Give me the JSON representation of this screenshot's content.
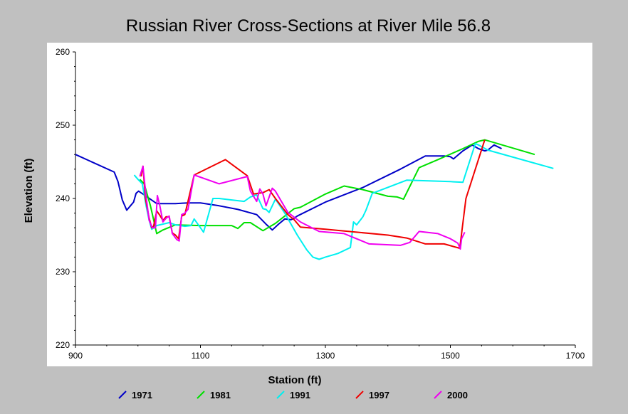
{
  "chart_data": {
    "type": "line",
    "title": "Russian River Cross-Sections at River Mile 56.8",
    "xlabel": "Station (ft)",
    "ylabel": "Elevation (ft)",
    "xlim": [
      900,
      1700
    ],
    "ylim": [
      220,
      260
    ],
    "x_ticks": [
      900,
      1100,
      1300,
      1500,
      1700
    ],
    "y_ticks": [
      220,
      230,
      240,
      250,
      260
    ],
    "grid": false,
    "legend_position": "bottom",
    "series": [
      {
        "name": "1971",
        "color": "#0000c8",
        "points": [
          [
            900,
            246.0
          ],
          [
            962,
            243.6
          ],
          [
            968,
            242.3
          ],
          [
            975,
            239.8
          ],
          [
            982,
            238.4
          ],
          [
            988,
            239.0
          ],
          [
            993,
            239.5
          ],
          [
            997,
            240.7
          ],
          [
            1001,
            241.0
          ],
          [
            1010,
            240.5
          ],
          [
            1030,
            239.3
          ],
          [
            1060,
            239.3
          ],
          [
            1080,
            239.4
          ],
          [
            1100,
            239.4
          ],
          [
            1130,
            239.0
          ],
          [
            1160,
            238.5
          ],
          [
            1190,
            237.8
          ],
          [
            1205,
            236.5
          ],
          [
            1215,
            235.7
          ],
          [
            1225,
            236.5
          ],
          [
            1235,
            237.2
          ],
          [
            1245,
            237.1
          ],
          [
            1250,
            237.3
          ],
          [
            1255,
            237.6
          ],
          [
            1300,
            239.5
          ],
          [
            1360,
            241.5
          ],
          [
            1420,
            244.0
          ],
          [
            1460,
            245.8
          ],
          [
            1490,
            245.8
          ],
          [
            1500,
            245.7
          ],
          [
            1505,
            245.4
          ],
          [
            1520,
            246.5
          ],
          [
            1535,
            247.3
          ],
          [
            1545,
            246.8
          ],
          [
            1555,
            246.5
          ],
          [
            1560,
            246.6
          ],
          [
            1570,
            247.3
          ],
          [
            1582,
            246.8
          ]
        ]
      },
      {
        "name": "1981",
        "color": "#00e000",
        "points": [
          [
            1003,
            242.6
          ],
          [
            1010,
            242.0
          ],
          [
            1020,
            239.0
          ],
          [
            1030,
            235.2
          ],
          [
            1040,
            235.7
          ],
          [
            1060,
            236.4
          ],
          [
            1100,
            236.3
          ],
          [
            1150,
            236.3
          ],
          [
            1160,
            235.9
          ],
          [
            1170,
            236.7
          ],
          [
            1180,
            236.7
          ],
          [
            1200,
            235.6
          ],
          [
            1220,
            236.6
          ],
          [
            1235,
            237.6
          ],
          [
            1250,
            238.6
          ],
          [
            1260,
            238.8
          ],
          [
            1300,
            240.6
          ],
          [
            1330,
            241.7
          ],
          [
            1360,
            241.2
          ],
          [
            1400,
            240.3
          ],
          [
            1415,
            240.2
          ],
          [
            1425,
            239.9
          ],
          [
            1450,
            244.2
          ],
          [
            1480,
            245.3
          ],
          [
            1520,
            246.8
          ],
          [
            1545,
            247.8
          ],
          [
            1555,
            248.0
          ],
          [
            1635,
            246.0
          ]
        ]
      },
      {
        "name": "1991",
        "color": "#00f0f0",
        "points": [
          [
            994,
            243.2
          ],
          [
            1000,
            242.6
          ],
          [
            1007,
            242.0
          ],
          [
            1013,
            239.0
          ],
          [
            1018,
            237.0
          ],
          [
            1022,
            235.8
          ],
          [
            1030,
            236.3
          ],
          [
            1050,
            236.7
          ],
          [
            1060,
            236.4
          ],
          [
            1075,
            236.2
          ],
          [
            1085,
            236.3
          ],
          [
            1090,
            237.2
          ],
          [
            1100,
            236.0
          ],
          [
            1105,
            235.4
          ],
          [
            1120,
            240.0
          ],
          [
            1130,
            240.0
          ],
          [
            1150,
            239.8
          ],
          [
            1170,
            239.6
          ],
          [
            1180,
            240.2
          ],
          [
            1190,
            240.5
          ],
          [
            1200,
            238.6
          ],
          [
            1205,
            238.5
          ],
          [
            1210,
            238.1
          ],
          [
            1220,
            239.9
          ],
          [
            1235,
            238.0
          ],
          [
            1255,
            235.0
          ],
          [
            1270,
            233.0
          ],
          [
            1280,
            232.0
          ],
          [
            1290,
            231.7
          ],
          [
            1300,
            232.0
          ],
          [
            1320,
            232.5
          ],
          [
            1340,
            233.3
          ],
          [
            1345,
            236.8
          ],
          [
            1350,
            236.4
          ],
          [
            1360,
            237.5
          ],
          [
            1365,
            238.4
          ],
          [
            1375,
            240.7
          ],
          [
            1430,
            242.5
          ],
          [
            1500,
            242.3
          ],
          [
            1520,
            242.2
          ],
          [
            1540,
            247.5
          ],
          [
            1545,
            247.3
          ],
          [
            1560,
            246.6
          ],
          [
            1665,
            244.1
          ]
        ]
      },
      {
        "name": "1997",
        "color": "#f00000",
        "points": [
          [
            1005,
            243.0
          ],
          [
            1008,
            244.4
          ],
          [
            1012,
            240.0
          ],
          [
            1018,
            237.3
          ],
          [
            1022,
            236.0
          ],
          [
            1025,
            236.2
          ],
          [
            1030,
            238.3
          ],
          [
            1035,
            237.7
          ],
          [
            1040,
            237.0
          ],
          [
            1045,
            237.5
          ],
          [
            1050,
            237.5
          ],
          [
            1055,
            235.3
          ],
          [
            1060,
            235.0
          ],
          [
            1065,
            234.5
          ],
          [
            1070,
            237.6
          ],
          [
            1075,
            237.8
          ],
          [
            1080,
            239.6
          ],
          [
            1090,
            243.2
          ],
          [
            1140,
            245.3
          ],
          [
            1175,
            243.1
          ],
          [
            1185,
            240.6
          ],
          [
            1200,
            240.8
          ],
          [
            1210,
            241.2
          ],
          [
            1220,
            240.0
          ],
          [
            1240,
            237.8
          ],
          [
            1250,
            237.1
          ],
          [
            1260,
            236.1
          ],
          [
            1300,
            235.8
          ],
          [
            1400,
            235.0
          ],
          [
            1430,
            234.6
          ],
          [
            1460,
            233.8
          ],
          [
            1490,
            233.8
          ],
          [
            1515,
            233.2
          ],
          [
            1525,
            240.0
          ],
          [
            1555,
            248.0
          ]
        ]
      },
      {
        "name": "2000",
        "color": "#f000f0",
        "points": [
          [
            1003,
            243.0
          ],
          [
            1008,
            244.4
          ],
          [
            1013,
            240.2
          ],
          [
            1018,
            237.0
          ],
          [
            1023,
            236.0
          ],
          [
            1028,
            236.0
          ],
          [
            1031,
            240.4
          ],
          [
            1035,
            239.0
          ],
          [
            1040,
            236.8
          ],
          [
            1045,
            237.3
          ],
          [
            1050,
            237.6
          ],
          [
            1055,
            235.2
          ],
          [
            1062,
            234.4
          ],
          [
            1066,
            234.2
          ],
          [
            1070,
            237.8
          ],
          [
            1075,
            238.0
          ],
          [
            1080,
            238.5
          ],
          [
            1090,
            243.2
          ],
          [
            1130,
            242.0
          ],
          [
            1175,
            243.0
          ],
          [
            1180,
            241.0
          ],
          [
            1190,
            239.6
          ],
          [
            1195,
            241.3
          ],
          [
            1200,
            240.6
          ],
          [
            1205,
            239.0
          ],
          [
            1215,
            241.4
          ],
          [
            1220,
            241.0
          ],
          [
            1240,
            238.1
          ],
          [
            1260,
            236.8
          ],
          [
            1290,
            235.5
          ],
          [
            1330,
            235.2
          ],
          [
            1370,
            233.8
          ],
          [
            1420,
            233.6
          ],
          [
            1435,
            234.0
          ],
          [
            1450,
            235.5
          ],
          [
            1480,
            235.2
          ],
          [
            1500,
            234.5
          ],
          [
            1512,
            233.9
          ],
          [
            1516,
            233.1
          ],
          [
            1518,
            234.5
          ],
          [
            1523,
            235.4
          ]
        ]
      }
    ]
  }
}
